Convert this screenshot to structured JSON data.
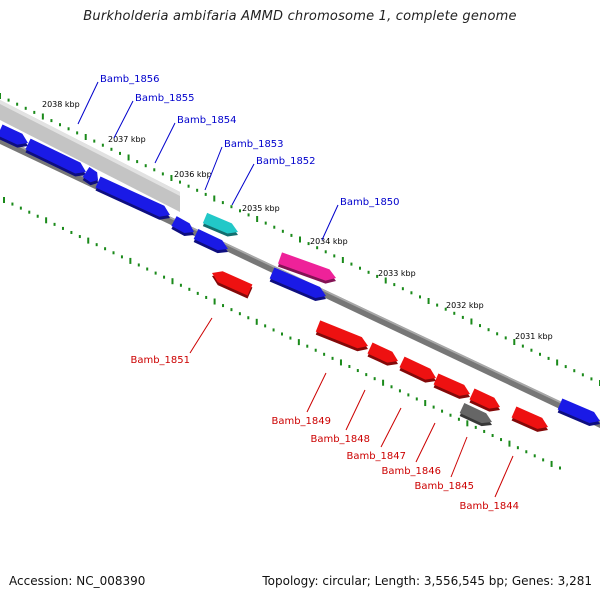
{
  "title": "Burkholderia ambifaria AMMD chromosome 1, complete genome",
  "footer": {
    "accession": "Accession: NC_008390",
    "summary": "Topology: circular; Length: 3,556,545 bp; Genes: 3,281"
  },
  "colors": {
    "forward_label": "#0000cc",
    "reverse_label": "#cc0000",
    "blue_gene": "#1a1ae6",
    "red_gene": "#ee1111",
    "cyan_gene": "#22c8c8",
    "magenta_gene": "#ee2299",
    "gray_gene": "#666666",
    "ruler_tick": "#1a8a1a",
    "backbone": "#777777"
  },
  "scale_labels": [
    "2038 kbp",
    "2037 kbp",
    "2036 kbp",
    "2035 kbp",
    "2034 kbp",
    "2033 kbp",
    "2032 kbp",
    "2031 kbp"
  ],
  "forward_labels": [
    "Bamb_1856",
    "Bamb_1855",
    "Bamb_1854",
    "Bamb_1853",
    "Bamb_1852",
    "Bamb_1850"
  ],
  "reverse_labels": [
    "Bamb_1851",
    "Bamb_1849",
    "Bamb_1848",
    "Bamb_1847",
    "Bamb_1846",
    "Bamb_1845",
    "Bamb_1844"
  ]
}
